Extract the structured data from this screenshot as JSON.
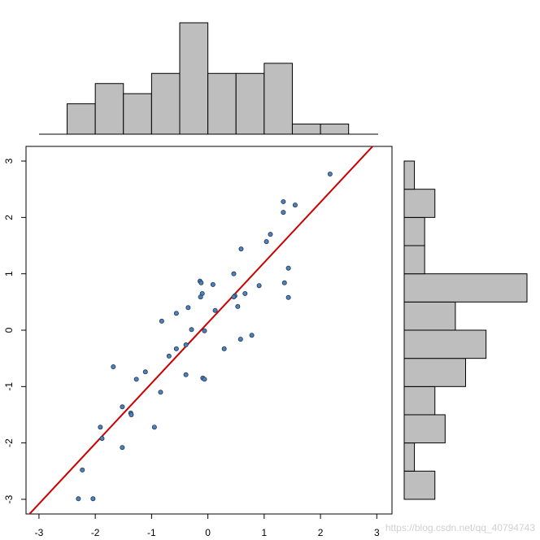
{
  "chart_data": [
    {
      "type": "scatter",
      "color": "#4f81bd",
      "edge_color": "#1f3550",
      "x": [
        2.17,
        1.34,
        1.55,
        1.34,
        1.11,
        1.04,
        0.59,
        1.43,
        0.46,
        -0.14,
        -0.12,
        1.36,
        0.09,
        0.91,
        -0.1,
        -0.13,
        0.48,
        0.66,
        1.43,
        -0.35,
        0.53,
        -0.56,
        0.13,
        -0.82,
        -0.29,
        -0.06,
        0.58,
        0.78,
        -0.39,
        -0.56,
        0.29,
        -0.69,
        -1.68,
        -1.11,
        -1.27,
        -0.39,
        -0.09,
        -0.06,
        -0.84,
        -1.52,
        -1.37,
        -1.36,
        -0.95,
        -1.91,
        -1.88,
        -1.52,
        -2.23,
        -2.3,
        -2.04,
        0.46
      ],
      "y": [
        2.77,
        2.28,
        2.22,
        2.09,
        1.7,
        1.57,
        1.44,
        1.1,
        1.0,
        0.87,
        0.84,
        0.84,
        0.81,
        0.79,
        0.65,
        0.59,
        0.61,
        0.65,
        0.58,
        0.4,
        0.42,
        0.3,
        0.35,
        0.16,
        0.01,
        -0.01,
        -0.16,
        -0.09,
        -0.26,
        -0.33,
        -0.33,
        -0.46,
        -0.65,
        -0.74,
        -0.87,
        -0.79,
        -0.85,
        -0.87,
        -1.1,
        -1.36,
        -1.47,
        -1.5,
        -1.72,
        -1.72,
        -1.92,
        -2.08,
        -2.48,
        -2.99,
        -2.99,
        0.59
      ],
      "xlim": [
        -3.23,
        3.27
      ],
      "ylim": [
        -3.26,
        3.26
      ],
      "xticks": [
        -3,
        -2,
        -1,
        0,
        1,
        2,
        3
      ],
      "yticks": [
        -3,
        -2,
        -1,
        0,
        1,
        2,
        3
      ],
      "abline": {
        "intercept": 0.13,
        "slope": 1.07,
        "color": "#cc0000"
      },
      "watermark": "https://blog.csdn.net/qq_40794743"
    },
    {
      "type": "histogram",
      "orientation": "vertical",
      "color": "#bebebe",
      "bins": [
        -2.5,
        -2,
        -1.5,
        -1,
        -0.5,
        0,
        0.5,
        1,
        1.5,
        2,
        2.5
      ],
      "values": [
        3,
        5,
        4,
        6,
        11,
        6,
        6,
        7,
        1,
        1
      ],
      "xlim": [
        -3.23,
        3.27
      ],
      "ylim": [
        0,
        11
      ]
    },
    {
      "type": "histogram",
      "orientation": "horizontal",
      "color": "#bebebe",
      "bins": [
        -3,
        -2.5,
        -2,
        -1.5,
        -1,
        -0.5,
        0,
        0.5,
        1,
        1.5,
        2,
        2.5,
        3
      ],
      "values": [
        3,
        1,
        4,
        3,
        6,
        8,
        5,
        12,
        2,
        2,
        3,
        1
      ],
      "xlim": [
        0,
        12
      ],
      "ylim": [
        -3.26,
        3.26
      ]
    }
  ]
}
